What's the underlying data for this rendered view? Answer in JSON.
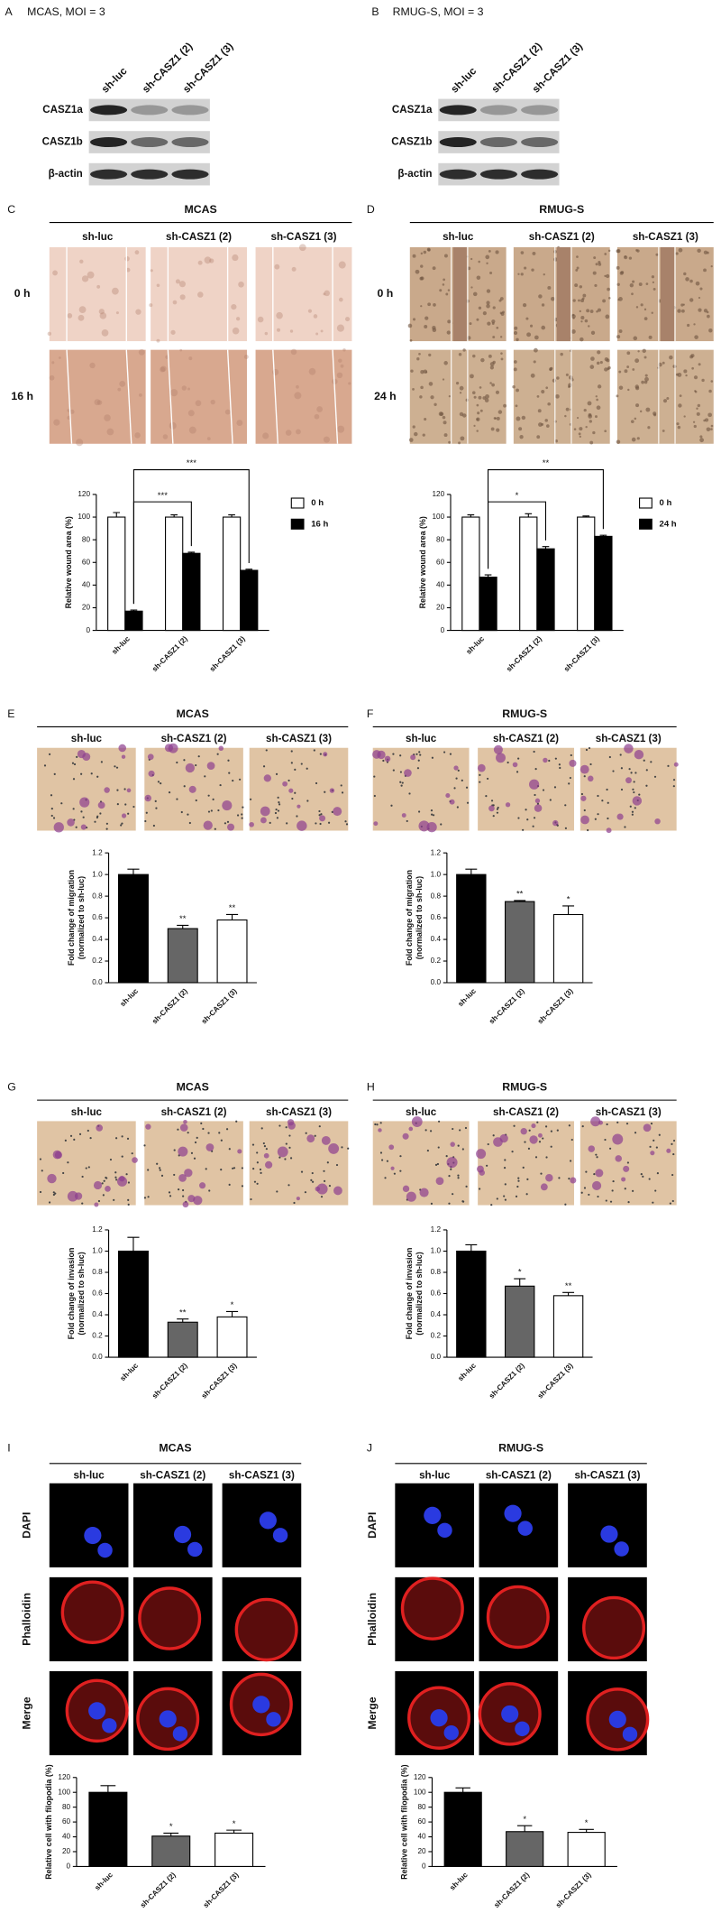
{
  "blots": [
    {
      "letter": "A",
      "title": "MCAS, MOI = 3",
      "lanes": [
        "sh-luc",
        "sh-CASZ1 (2)",
        "sh-CASZ1 (3)"
      ],
      "rows": [
        "CASZ1a",
        "CASZ1b",
        "β-actin"
      ]
    },
    {
      "letter": "B",
      "title": "RMUG-S, MOI = 3",
      "lanes": [
        "sh-luc",
        "sh-CASZ1 (2)",
        "sh-CASZ1 (3)"
      ],
      "rows": [
        "CASZ1a",
        "CASZ1b",
        "β-actin"
      ]
    }
  ],
  "image_panels": [
    {
      "letter": "C",
      "title": "MCAS",
      "columns": [
        "sh-luc",
        "sh-CASZ1 (2)",
        "sh-CASZ1 (3)"
      ],
      "rows": [
        "0 h",
        "16 h"
      ]
    },
    {
      "letter": "D",
      "title": "RMUG-S",
      "columns": [
        "sh-luc",
        "sh-CASZ1 (2)",
        "sh-CASZ1 (3)"
      ],
      "rows": [
        "0 h",
        "24 h"
      ]
    },
    {
      "letter": "E",
      "title": "MCAS",
      "columns": [
        "sh-luc",
        "sh-CASZ1 (2)",
        "sh-CASZ1 (3)"
      ]
    },
    {
      "letter": "F",
      "title": "RMUG-S",
      "columns": [
        "sh-luc",
        "sh-CASZ1 (2)",
        "sh-CASZ1 (3)"
      ]
    },
    {
      "letter": "G",
      "title": "MCAS",
      "columns": [
        "sh-luc",
        "sh-CASZ1 (2)",
        "sh-CASZ1 (3)"
      ]
    },
    {
      "letter": "H",
      "title": "RMUG-S",
      "columns": [
        "sh-luc",
        "sh-CASZ1 (2)",
        "sh-CASZ1 (3)"
      ]
    },
    {
      "letter": "I",
      "title": "MCAS",
      "columns": [
        "sh-luc",
        "sh-CASZ1 (2)",
        "sh-CASZ1 (3)"
      ],
      "rows": [
        "DAPI",
        "Phalloidin",
        "Merge"
      ]
    },
    {
      "letter": "J",
      "title": "RMUG-S",
      "columns": [
        "sh-luc",
        "sh-CASZ1 (2)",
        "sh-CASZ1 (3)"
      ],
      "rows": [
        "DAPI",
        "Phalloidin",
        "Merge"
      ]
    }
  ],
  "chart_data": [
    {
      "type": "bar",
      "ylabel": [
        "Relative wound area (%)"
      ],
      "categories": [
        "sh-luc",
        "sh-CASZ1 (2)",
        "sh-CASZ1 (3)"
      ],
      "series": [
        {
          "name": "0 h",
          "color": "#ffffff",
          "values": [
            100,
            100,
            100
          ],
          "errors": [
            4,
            2,
            2
          ]
        },
        {
          "name": "16 h",
          "color": "#000000",
          "values": [
            17,
            68,
            53
          ],
          "errors": [
            1,
            1,
            1
          ]
        }
      ],
      "ylim": [
        0,
        120
      ],
      "yticks": [
        0,
        20,
        40,
        60,
        80,
        100,
        120
      ],
      "legend": "right",
      "annotations": [
        {
          "from": "sh-luc",
          "to": "sh-CASZ1 (2)",
          "text": "***"
        },
        {
          "from": "sh-luc",
          "to": "sh-CASZ1 (3)",
          "text": "***"
        }
      ]
    },
    {
      "type": "bar",
      "ylabel": [
        "Relative wound area (%)"
      ],
      "categories": [
        "sh-luc",
        "sh-CASZ1 (2)",
        "sh-CASZ1 (3)"
      ],
      "series": [
        {
          "name": "0 h",
          "color": "#ffffff",
          "values": [
            100,
            100,
            100
          ],
          "errors": [
            2,
            3,
            1
          ]
        },
        {
          "name": "24 h",
          "color": "#000000",
          "values": [
            47,
            72,
            83
          ],
          "errors": [
            2,
            2,
            1
          ]
        }
      ],
      "ylim": [
        0,
        120
      ],
      "yticks": [
        0,
        20,
        40,
        60,
        80,
        100,
        120
      ],
      "legend": "right",
      "annotations": [
        {
          "from": "sh-luc",
          "to": "sh-CASZ1 (2)",
          "text": "*"
        },
        {
          "from": "sh-luc",
          "to": "sh-CASZ1 (3)",
          "text": "**"
        }
      ]
    },
    {
      "type": "bar",
      "ylabel": [
        "Fold change of migration",
        "(normalized to sh-luc)"
      ],
      "categories": [
        "sh-luc",
        "sh-CASZ1 (2)",
        "sh-CASZ1 (3)"
      ],
      "values": [
        1.0,
        0.5,
        0.58
      ],
      "errors": [
        0.05,
        0.03,
        0.05
      ],
      "colors": [
        "#000000",
        "#666666",
        "#ffffff"
      ],
      "ylim": [
        0,
        1.2
      ],
      "yticks": [
        {
          "value": 0,
          "label": "0.0"
        },
        0.2,
        0.4,
        0.6,
        0.8,
        {
          "value": 1,
          "label": "1.0"
        },
        1.2
      ],
      "annotations": [
        {
          "x": "sh-CASZ1 (2)",
          "text": "**"
        },
        {
          "x": "sh-CASZ1 (3)",
          "text": "**"
        }
      ]
    },
    {
      "type": "bar",
      "ylabel": [
        "Fold change of migration",
        "(normalized to sh-luc)"
      ],
      "categories": [
        "sh-luc",
        "sh-CASZ1 (2)",
        "sh-CASZ1 (3)"
      ],
      "values": [
        1.0,
        0.75,
        0.63
      ],
      "errors": [
        0.05,
        0.01,
        0.08
      ],
      "colors": [
        "#000000",
        "#666666",
        "#ffffff"
      ],
      "ylim": [
        0,
        1.2
      ],
      "yticks": [
        {
          "value": 0,
          "label": "0.0"
        },
        0.2,
        0.4,
        0.6,
        0.8,
        {
          "value": 1,
          "label": "1.0"
        },
        1.2
      ],
      "annotations": [
        {
          "x": "sh-CASZ1 (2)",
          "text": "**"
        },
        {
          "x": "sh-CASZ1 (3)",
          "text": "*"
        }
      ]
    },
    {
      "type": "bar",
      "ylabel": [
        "Fold change of invasion",
        "(normalized to sh-luc)"
      ],
      "categories": [
        "sh-luc",
        "sh-CASZ1 (2)",
        "sh-CASZ1 (3)"
      ],
      "values": [
        1.0,
        0.33,
        0.38
      ],
      "errors": [
        0.13,
        0.03,
        0.05
      ],
      "colors": [
        "#000000",
        "#666666",
        "#ffffff"
      ],
      "ylim": [
        0,
        1.2
      ],
      "yticks": [
        {
          "value": 0,
          "label": "0.0"
        },
        0.2,
        0.4,
        0.6,
        0.8,
        {
          "value": 1,
          "label": "1.0"
        },
        1.2
      ],
      "annotations": [
        {
          "x": "sh-CASZ1 (2)",
          "text": "**"
        },
        {
          "x": "sh-CASZ1 (3)",
          "text": "*"
        }
      ]
    },
    {
      "type": "bar",
      "ylabel": [
        "Fold change of invasion",
        "(normalized to sh-luc)"
      ],
      "categories": [
        "sh-luc",
        "sh-CASZ1 (2)",
        "sh-CASZ1 (3)"
      ],
      "values": [
        1.0,
        0.67,
        0.58
      ],
      "errors": [
        0.06,
        0.07,
        0.03
      ],
      "colors": [
        "#000000",
        "#666666",
        "#ffffff"
      ],
      "ylim": [
        0,
        1.2
      ],
      "yticks": [
        {
          "value": 0,
          "label": "0.0"
        },
        0.2,
        0.4,
        0.6,
        0.8,
        {
          "value": 1,
          "label": "1.0"
        },
        1.2
      ],
      "annotations": [
        {
          "x": "sh-CASZ1 (2)",
          "text": "*"
        },
        {
          "x": "sh-CASZ1 (3)",
          "text": "**"
        }
      ]
    },
    {
      "type": "bar",
      "ylabel": [
        "Relative cell with filopodia (%)"
      ],
      "categories": [
        "sh-luc",
        "sh-CASZ1 (2)",
        "sh-CASZ1 (3)"
      ],
      "values": [
        100,
        41,
        45
      ],
      "errors": [
        9,
        4,
        4
      ],
      "colors": [
        "#000000",
        "#666666",
        "#ffffff"
      ],
      "ylim": [
        0,
        120
      ],
      "yticks": [
        0,
        20,
        40,
        60,
        80,
        100,
        120
      ],
      "annotations": [
        {
          "x": "sh-CASZ1 (2)",
          "text": "*"
        },
        {
          "x": "sh-CASZ1 (3)",
          "text": "*"
        }
      ]
    },
    {
      "type": "bar",
      "ylabel": [
        "Relative cell with filopodia (%)"
      ],
      "categories": [
        "sh-luc",
        "sh-CASZ1 (2)",
        "sh-CASZ1 (3)"
      ],
      "values": [
        100,
        47,
        46
      ],
      "errors": [
        6,
        8,
        4
      ],
      "colors": [
        "#000000",
        "#666666",
        "#ffffff"
      ],
      "ylim": [
        0,
        120
      ],
      "yticks": [
        0,
        20,
        40,
        60,
        80,
        100,
        120
      ],
      "annotations": [
        {
          "x": "sh-CASZ1 (2)",
          "text": "*"
        },
        {
          "x": "sh-CASZ1 (3)",
          "text": "*"
        }
      ]
    }
  ]
}
